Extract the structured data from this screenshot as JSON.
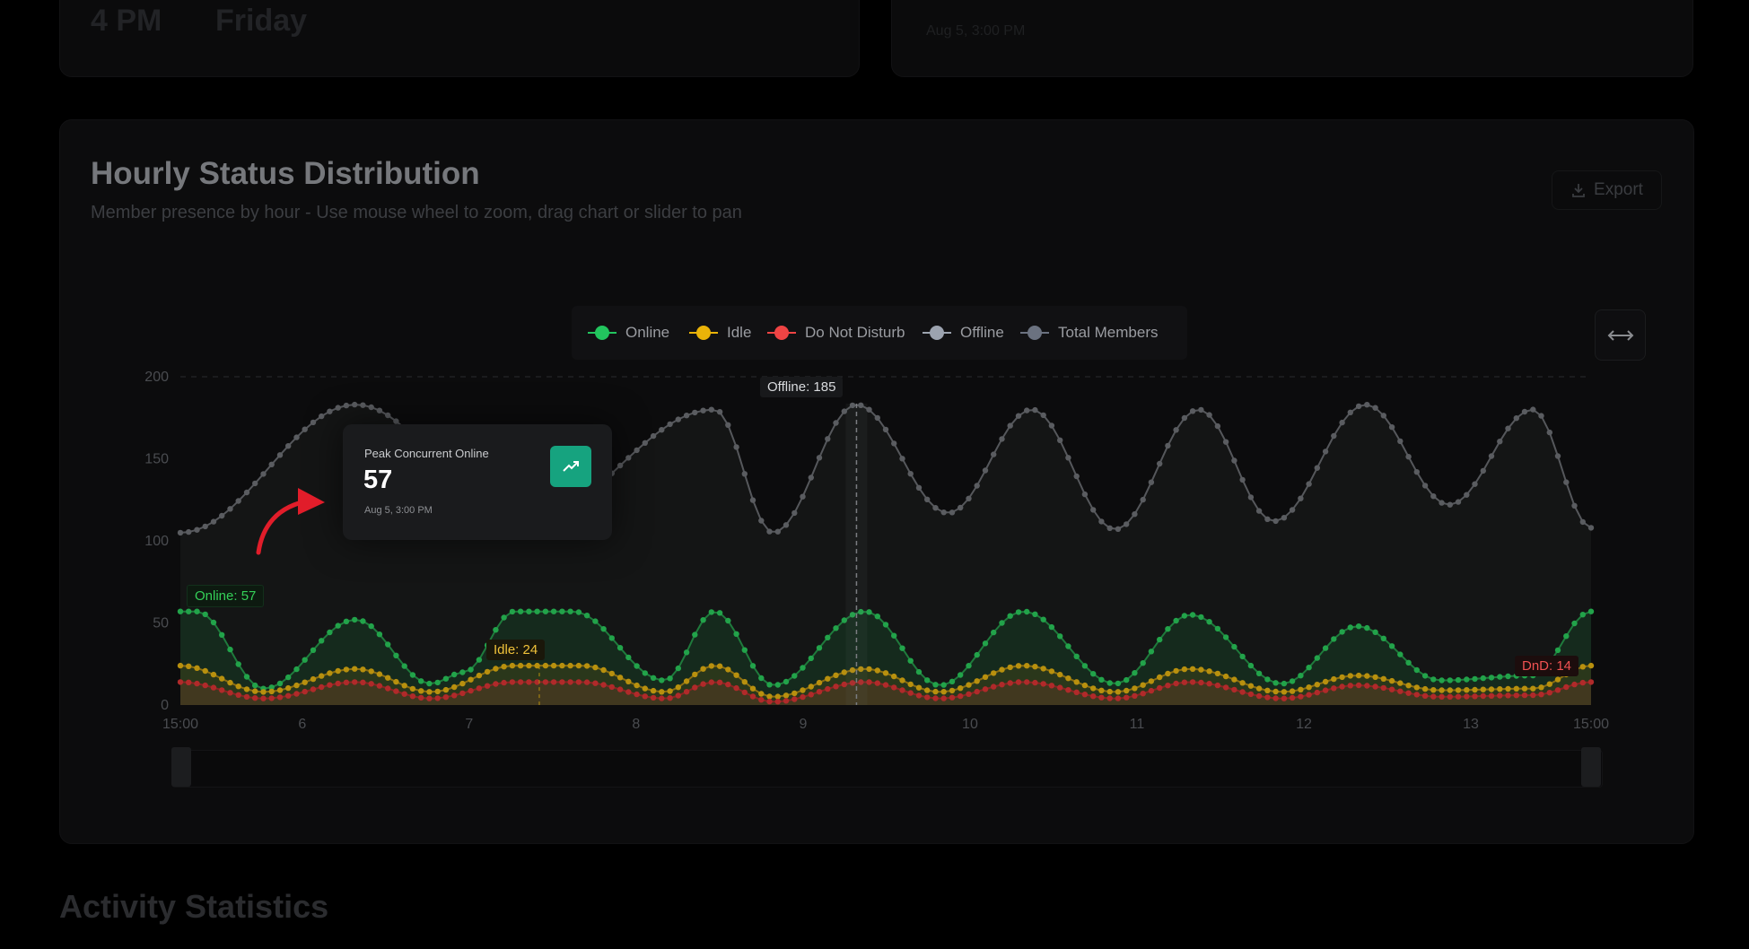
{
  "top_cards": {
    "left": {
      "hour": "4 PM",
      "day": "Friday"
    },
    "right": {
      "timestamp": "Aug 5, 3:00 PM"
    }
  },
  "panel": {
    "title": "Hourly Status Distribution",
    "subtitle": "Member presence by hour - Use mouse wheel to zoom, drag chart or slider to pan",
    "export_label": "Export"
  },
  "legend": [
    {
      "label": "Online",
      "color": "#22c55e"
    },
    {
      "label": "Idle",
      "color": "#eab308"
    },
    {
      "label": "Do Not Disturb",
      "color": "#ef4444"
    },
    {
      "label": "Offline",
      "color": "#9ca3af"
    },
    {
      "label": "Total Members",
      "color": "#6b7280"
    }
  ],
  "peak_card": {
    "label": "Peak Concurrent Online",
    "value": "57",
    "time": "Aug 5, 3:00 PM"
  },
  "tooltips": {
    "online": "Online: 57",
    "idle": "Idle: 24",
    "offline": "Offline: 185",
    "dnd": "DnD: 14"
  },
  "section": {
    "heading": "Activity Statistics"
  },
  "chart_data": {
    "type": "line",
    "x_ticks": [
      "15:00",
      "6",
      "7",
      "8",
      "9",
      "10",
      "11",
      "12",
      "13",
      "15:00"
    ],
    "y_ticks": [
      0,
      50,
      100,
      150,
      200
    ],
    "ylim": [
      0,
      200
    ],
    "grid": false,
    "legend_position": "top-center",
    "series": [
      {
        "name": "Offline",
        "color": "#9ca3af",
        "peaks": [
          [
            0,
            105
          ],
          [
            1.05,
            183
          ],
          [
            2.05,
            110
          ],
          [
            3.2,
            180
          ],
          [
            3.55,
            105
          ],
          [
            4.05,
            183
          ],
          [
            4.6,
            117
          ],
          [
            5.1,
            180
          ],
          [
            5.6,
            107
          ],
          [
            6.1,
            180
          ],
          [
            6.55,
            112
          ],
          [
            7.1,
            183
          ],
          [
            7.6,
            122
          ],
          [
            8.1,
            180
          ],
          [
            8.45,
            108
          ]
        ]
      },
      {
        "name": "Online",
        "color": "#22c55e",
        "peaks": [
          [
            0,
            57
          ],
          [
            0.1,
            57
          ],
          [
            0.5,
            10
          ],
          [
            1.05,
            52
          ],
          [
            1.5,
            13
          ],
          [
            1.7,
            20
          ],
          [
            2.0,
            57
          ],
          [
            2.35,
            57
          ],
          [
            2.9,
            15
          ],
          [
            3.2,
            57
          ],
          [
            3.55,
            12
          ],
          [
            4.1,
            57
          ],
          [
            4.55,
            12
          ],
          [
            5.05,
            57
          ],
          [
            5.6,
            13
          ],
          [
            6.05,
            55
          ],
          [
            6.6,
            13
          ],
          [
            7.05,
            48
          ],
          [
            7.55,
            15
          ],
          [
            8.1,
            18
          ],
          [
            8.45,
            57
          ]
        ]
      },
      {
        "name": "Idle",
        "color": "#eab308",
        "peaks": [
          [
            0,
            24
          ],
          [
            0.5,
            8
          ],
          [
            1.05,
            22
          ],
          [
            1.5,
            8
          ],
          [
            2.0,
            24
          ],
          [
            2.4,
            24
          ],
          [
            2.9,
            8
          ],
          [
            3.2,
            24
          ],
          [
            3.55,
            5
          ],
          [
            4.1,
            22
          ],
          [
            4.55,
            8
          ],
          [
            5.05,
            24
          ],
          [
            5.6,
            8
          ],
          [
            6.05,
            22
          ],
          [
            6.6,
            8
          ],
          [
            7.05,
            18
          ],
          [
            7.55,
            9
          ],
          [
            8.1,
            10
          ],
          [
            8.45,
            24
          ]
        ]
      },
      {
        "name": "Do Not Disturb",
        "color": "#ef4444",
        "peaks": [
          [
            0,
            14
          ],
          [
            0.5,
            4
          ],
          [
            1.05,
            14
          ],
          [
            1.5,
            4
          ],
          [
            2.0,
            14
          ],
          [
            2.4,
            14
          ],
          [
            2.9,
            4
          ],
          [
            3.2,
            14
          ],
          [
            3.55,
            2
          ],
          [
            4.1,
            14
          ],
          [
            4.55,
            4
          ],
          [
            5.05,
            14
          ],
          [
            5.6,
            4
          ],
          [
            6.05,
            14
          ],
          [
            6.6,
            4
          ],
          [
            7.05,
            12
          ],
          [
            7.55,
            5
          ],
          [
            8.1,
            6
          ],
          [
            8.45,
            14
          ]
        ]
      }
    ]
  }
}
